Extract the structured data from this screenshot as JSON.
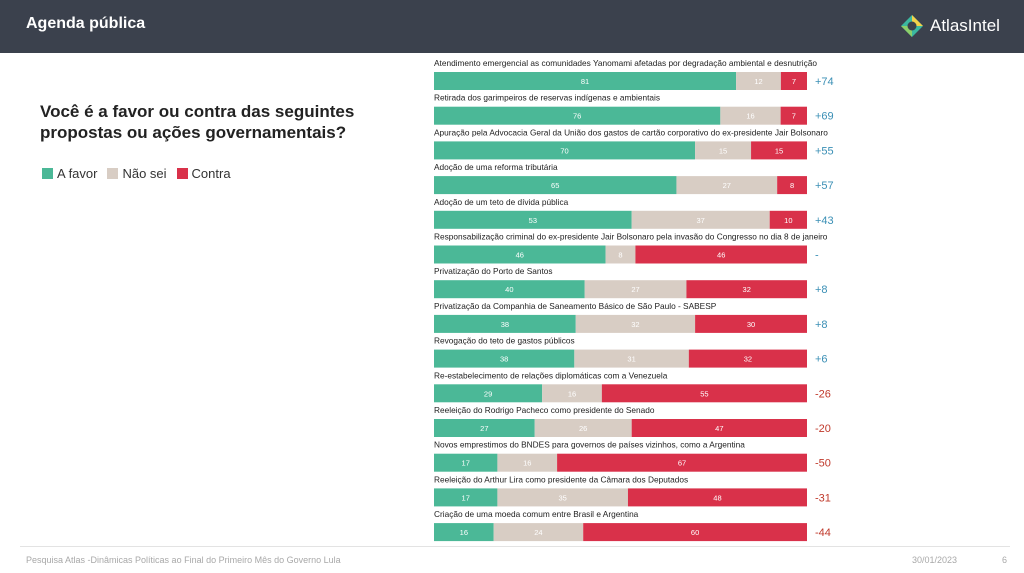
{
  "header": {
    "title": "Agenda pública",
    "logo_text": "AtlasIntel",
    "logo_icon": "atlasintel-logo-icon"
  },
  "question": "Você é a favor ou contra das seguintes propostas ou ações governamentais?",
  "legend": [
    {
      "label": "A favor",
      "color": "#4bb897"
    },
    {
      "label": "Não sei",
      "color": "#d8cdc4"
    },
    {
      "label": "Contra",
      "color": "#d9314a"
    }
  ],
  "colors": {
    "favor": "#4bb897",
    "naosei": "#d8cdc4",
    "contra": "#d9314a",
    "net_positive": "#3a8fb5",
    "net_negative": "#c0392b"
  },
  "chart_data": {
    "type": "bar",
    "orientation": "horizontal",
    "stacked": true,
    "xlim": [
      0,
      100
    ],
    "grid": false,
    "legend_position": "left",
    "series_names": [
      "A favor",
      "Não sei",
      "Contra"
    ],
    "rows": [
      {
        "label": "Atendimento emergencial as comunidades Yanomami afetadas por degradação ambiental e desnutrição",
        "favor": 81,
        "naosei": 12,
        "contra": 7,
        "net": "+74"
      },
      {
        "label": "Retirada dos garimpeiros de reservas indígenas e ambientais",
        "favor": 76,
        "naosei": 16,
        "contra": 7,
        "net": "+69"
      },
      {
        "label": "Apuração pela Advocacia Geral da União dos gastos de cartão corporativo do ex-presidente Jair Bolsonaro",
        "favor": 70,
        "naosei": 15,
        "contra": 15,
        "net": "+55"
      },
      {
        "label": "Adoção de uma reforma tributária",
        "favor": 65,
        "naosei": 27,
        "contra": 8,
        "net": "+57"
      },
      {
        "label": "Adoção de um teto de dívida pública",
        "favor": 53,
        "naosei": 37,
        "contra": 10,
        "net": "+43"
      },
      {
        "label": "Responsabilização criminal do ex-presidente Jair Bolsonaro pela invasão do Congresso no dia 8 de janeiro",
        "favor": 46,
        "naosei": 8,
        "contra": 46,
        "net": "-"
      },
      {
        "label": "Privatização do Porto de Santos",
        "favor": 40,
        "naosei": 27,
        "contra": 32,
        "net": "+8"
      },
      {
        "label": "Privatização da Companhia de Saneamento Básico de São Paulo - SABESP",
        "favor": 38,
        "naosei": 32,
        "contra": 30,
        "net": "+8"
      },
      {
        "label": "Revogação do teto de gastos públicos",
        "favor": 38,
        "naosei": 31,
        "contra": 32,
        "net": "+6"
      },
      {
        "label": "Re-estabelecimento de relações diplomáticas com a Venezuela",
        "favor": 29,
        "naosei": 16,
        "contra": 55,
        "net": "-26"
      },
      {
        "label": "Reeleição do Rodrigo Pacheco como presidente do Senado",
        "favor": 27,
        "naosei": 26,
        "contra": 47,
        "net": "-20"
      },
      {
        "label": "Novos emprestimos do BNDES para governos de países vizinhos, como a Argentina",
        "favor": 17,
        "naosei": 16,
        "contra": 67,
        "net": "-50"
      },
      {
        "label": "Reeleição do Arthur Lira como presidente da Câmara dos Deputados",
        "favor": 17,
        "naosei": 35,
        "contra": 48,
        "net": "-31"
      },
      {
        "label": "Criação de uma moeda comum entre Brasil e Argentina",
        "favor": 16,
        "naosei": 24,
        "contra": 60,
        "net": "-44"
      }
    ]
  },
  "footer": {
    "source": "Pesquisa Atlas -Dinâmicas Políticas ao Final do Primeiro Mês do Governo Lula",
    "date": "30/01/2023",
    "page": "6"
  }
}
